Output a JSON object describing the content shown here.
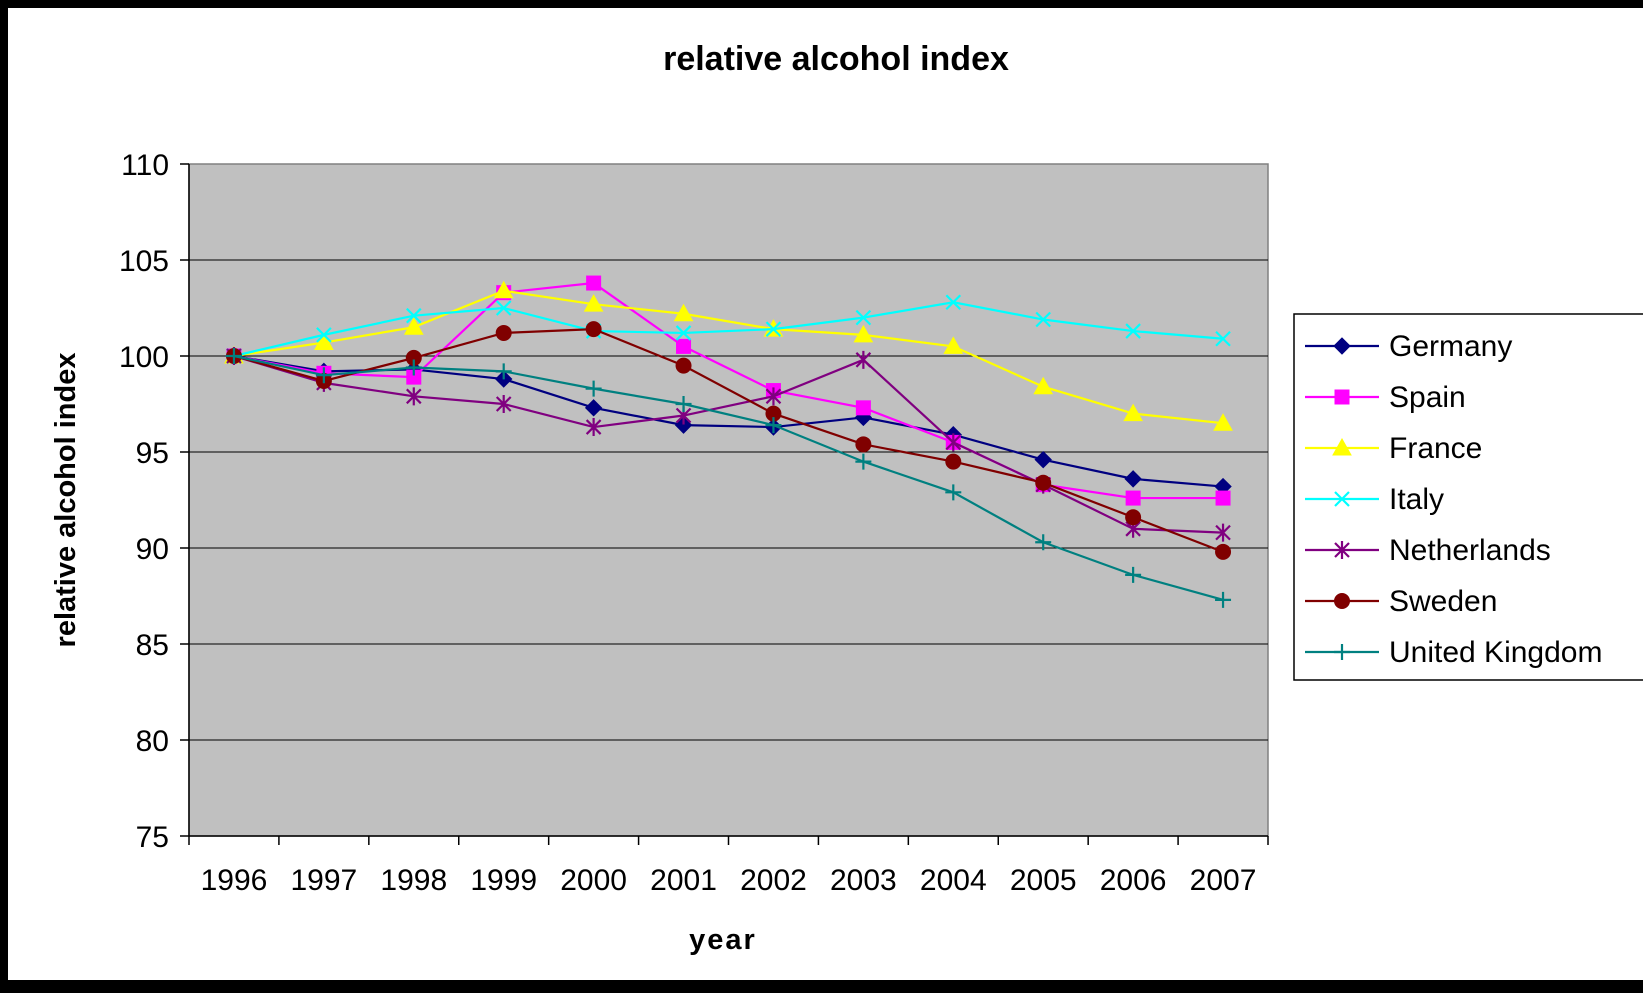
{
  "chart_data": {
    "type": "line",
    "title": "relative alcohol index",
    "xlabel": "year",
    "ylabel": "relative alcohol index",
    "ylim": [
      75,
      110
    ],
    "y_ticks": [
      "110",
      "105",
      "100",
      "95",
      "90",
      "85",
      "80",
      "75"
    ],
    "categories": [
      "1996",
      "1997",
      "1998",
      "1999",
      "2000",
      "2001",
      "2002",
      "2003",
      "2004",
      "2005",
      "2006",
      "2007"
    ],
    "grid": true,
    "legend_position": "right",
    "plot_background": "#c0c0c0",
    "series": [
      {
        "name": "Germany",
        "color": "#000080",
        "marker": "diamond",
        "values": [
          100,
          99.2,
          99.3,
          98.8,
          97.3,
          96.4,
          96.3,
          96.8,
          95.9,
          94.6,
          93.6,
          93.2
        ]
      },
      {
        "name": "Spain",
        "color": "#ff00ff",
        "marker": "square",
        "values": [
          100,
          99.1,
          98.9,
          103.3,
          103.8,
          100.5,
          98.2,
          97.3,
          95.5,
          93.3,
          92.6,
          92.6
        ]
      },
      {
        "name": "France",
        "color": "#ffff00",
        "marker": "triangle",
        "values": [
          100,
          100.7,
          101.5,
          103.4,
          102.7,
          102.2,
          101.4,
          101.1,
          100.5,
          98.4,
          97.0,
          96.5
        ]
      },
      {
        "name": "Italy",
        "color": "#00ffff",
        "marker": "x",
        "values": [
          100,
          101.1,
          102.1,
          102.5,
          101.3,
          101.2,
          101.4,
          102.0,
          102.8,
          101.9,
          101.3,
          100.9
        ]
      },
      {
        "name": "Netherlands",
        "color": "#800080",
        "marker": "star",
        "values": [
          100,
          98.6,
          97.9,
          97.5,
          96.3,
          96.9,
          97.9,
          99.8,
          95.5,
          93.3,
          91.0,
          90.8
        ]
      },
      {
        "name": "Sweden",
        "color": "#800000",
        "marker": "circle",
        "values": [
          100,
          98.7,
          99.9,
          101.2,
          101.4,
          99.5,
          97.0,
          95.4,
          94.5,
          93.4,
          91.6,
          89.8
        ]
      },
      {
        "name": "United Kingdom",
        "color": "#008080",
        "marker": "plus",
        "values": [
          100,
          99.0,
          99.4,
          99.2,
          98.3,
          97.5,
          96.4,
          94.5,
          92.9,
          90.3,
          88.6,
          87.3
        ]
      }
    ]
  }
}
